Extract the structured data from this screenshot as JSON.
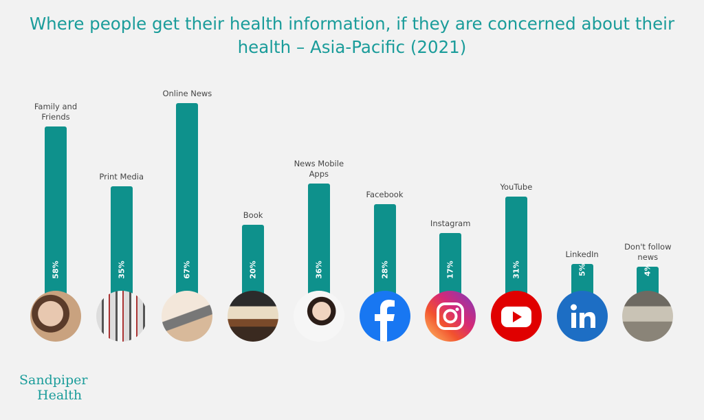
{
  "chart_data": {
    "type": "bar",
    "title": "Where people get their health information, if they are concerned about their health – Asia-Pacific (2021)",
    "categories": [
      "Family and Friends",
      "Print Media",
      "Online News",
      "Book",
      "News Mobile Apps",
      "Facebook",
      "Instagram",
      "YouTube",
      "LinkedIn",
      "Don't follow news"
    ],
    "values": [
      58,
      35,
      67,
      20,
      36,
      28,
      17,
      31,
      5,
      4
    ],
    "value_labels": [
      "58%",
      "35%",
      "67%",
      "20%",
      "36%",
      "28%",
      "17%",
      "31%",
      "5%",
      "4%"
    ],
    "color": "#0e918c"
  },
  "brand": [
    "Sandpiper",
    "Health"
  ]
}
